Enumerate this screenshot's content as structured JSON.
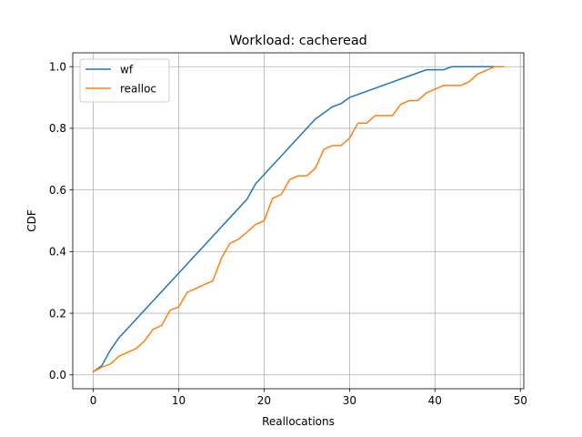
{
  "chart_data": {
    "type": "line",
    "title": "Workload: cacheread",
    "xlabel": "Reallocations",
    "ylabel": "CDF",
    "xlim": [
      -2.4,
      50.4
    ],
    "ylim": [
      -0.045,
      1.045
    ],
    "xticks": [
      0,
      10,
      20,
      30,
      40,
      50
    ],
    "yticks": [
      0.0,
      0.2,
      0.4,
      0.6,
      0.8,
      1.0
    ],
    "xtick_labels": [
      "0",
      "10",
      "20",
      "30",
      "40",
      "50"
    ],
    "ytick_labels": [
      "0.0",
      "0.2",
      "0.4",
      "0.6",
      "0.8",
      "1.0"
    ],
    "grid": true,
    "legend_position": "top-left",
    "series": [
      {
        "name": "wf",
        "color": "#1f77b4",
        "x": [
          0,
          1,
          2,
          3,
          18,
          19,
          26,
          28,
          29,
          30,
          39,
          41,
          42,
          47,
          48
        ],
        "y": [
          0.01,
          0.03,
          0.08,
          0.12,
          0.57,
          0.62,
          0.83,
          0.87,
          0.88,
          0.9,
          0.99,
          0.99,
          1.0,
          1.0,
          1.0
        ]
      },
      {
        "name": "realloc",
        "color": "#ff7f0e",
        "x": [
          0,
          1,
          2,
          3,
          4,
          5,
          6,
          7,
          8,
          9,
          10,
          11,
          12,
          13,
          14,
          15,
          16,
          17,
          18,
          19,
          20,
          21,
          22,
          23,
          24,
          25,
          26,
          27,
          28,
          29,
          30,
          31,
          32,
          33,
          34,
          35,
          36,
          37,
          38,
          39,
          40,
          41,
          42,
          43,
          44,
          45,
          46,
          47,
          48
        ],
        "y": [
          0.01,
          0.025,
          0.035,
          0.06,
          0.073,
          0.085,
          0.11,
          0.148,
          0.16,
          0.21,
          0.22,
          0.268,
          0.28,
          0.293,
          0.305,
          0.378,
          0.427,
          0.44,
          0.463,
          0.488,
          0.5,
          0.573,
          0.585,
          0.634,
          0.646,
          0.646,
          0.67,
          0.732,
          0.744,
          0.744,
          0.768,
          0.817,
          0.817,
          0.841,
          0.841,
          0.841,
          0.878,
          0.89,
          0.89,
          0.915,
          0.927,
          0.939,
          0.939,
          0.939,
          0.951,
          0.976,
          0.988,
          1.0,
          1.0
        ]
      }
    ]
  }
}
